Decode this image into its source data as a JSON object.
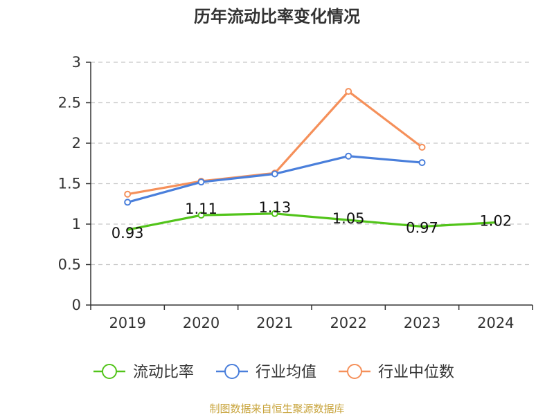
{
  "chart_data": {
    "type": "line",
    "title": "历年流动比率变化情况",
    "categories": [
      "2019",
      "2020",
      "2021",
      "2022",
      "2023",
      "2024"
    ],
    "ylim": [
      0,
      3
    ],
    "yticks": [
      "0",
      "0.5",
      "1",
      "1.5",
      "2",
      "2.5",
      "3"
    ],
    "ytick_values": [
      0,
      0.5,
      1,
      1.5,
      2,
      2.5,
      3
    ],
    "grid": true,
    "legend_position": "bottom",
    "series": [
      {
        "name": "流动比率",
        "color": "#52c41a",
        "values": [
          0.93,
          1.11,
          1.13,
          1.05,
          0.97,
          1.02
        ],
        "labels": [
          "0.93",
          "1.11",
          "1.13",
          "1.05",
          "0.97",
          "1.02"
        ],
        "markers": [
          false,
          true,
          true,
          false,
          false,
          false
        ]
      },
      {
        "name": "行业均值",
        "color": "#4a7fdb",
        "values": [
          1.27,
          1.52,
          1.62,
          1.84,
          1.76,
          null
        ],
        "markers": [
          true,
          true,
          true,
          true,
          true,
          false
        ]
      },
      {
        "name": "行业中位数",
        "color": "#f5905a",
        "values": [
          1.37,
          1.53,
          1.63,
          2.64,
          1.95,
          null
        ],
        "markers": [
          true,
          true,
          true,
          true,
          true,
          false
        ]
      }
    ],
    "source": "制图数据来自恒生聚源数据库"
  }
}
